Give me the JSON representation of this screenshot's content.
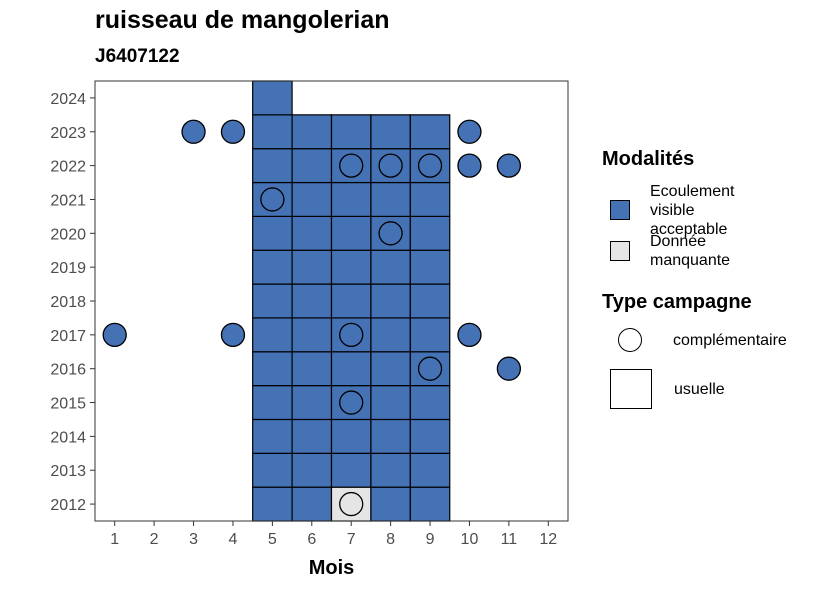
{
  "title": "ruisseau de mangolerian",
  "subtitle": "J6407122",
  "colors": {
    "ecoulement": "#4472B4",
    "manquante": "#E5E5E5"
  },
  "chart_data": {
    "type": "heatmap",
    "xlabel": "Mois",
    "ylabel": "",
    "x_ticks": [
      "1",
      "2",
      "3",
      "4",
      "5",
      "6",
      "7",
      "8",
      "9",
      "10",
      "11",
      "12"
    ],
    "y_ticks": [
      "2012",
      "2013",
      "2014",
      "2015",
      "2016",
      "2017",
      "2018",
      "2019",
      "2020",
      "2021",
      "2022",
      "2023",
      "2024"
    ],
    "xlim": [
      0.5,
      12.5
    ],
    "ylim": [
      2011.5,
      2024.5
    ],
    "grid": false,
    "legend_position": "right",
    "usuelle_tiles": [
      {
        "year": 2012,
        "months": [
          5,
          6,
          7,
          8,
          9
        ],
        "modalite": [
          "ecoulement",
          "ecoulement",
          "manquante",
          "ecoulement",
          "ecoulement"
        ]
      },
      {
        "year": 2013,
        "months": [
          5,
          6,
          7,
          8,
          9
        ],
        "modalite": [
          "ecoulement",
          "ecoulement",
          "ecoulement",
          "ecoulement",
          "ecoulement"
        ]
      },
      {
        "year": 2014,
        "months": [
          5,
          6,
          7,
          8,
          9
        ],
        "modalite": [
          "ecoulement",
          "ecoulement",
          "ecoulement",
          "ecoulement",
          "ecoulement"
        ]
      },
      {
        "year": 2015,
        "months": [
          5,
          6,
          7,
          8,
          9
        ],
        "modalite": [
          "ecoulement",
          "ecoulement",
          "ecoulement",
          "ecoulement",
          "ecoulement"
        ]
      },
      {
        "year": 2016,
        "months": [
          5,
          6,
          7,
          8,
          9
        ],
        "modalite": [
          "ecoulement",
          "ecoulement",
          "ecoulement",
          "ecoulement",
          "ecoulement"
        ]
      },
      {
        "year": 2017,
        "months": [
          5,
          6,
          7,
          8,
          9
        ],
        "modalite": [
          "ecoulement",
          "ecoulement",
          "ecoulement",
          "ecoulement",
          "ecoulement"
        ]
      },
      {
        "year": 2018,
        "months": [
          5,
          6,
          7,
          8,
          9
        ],
        "modalite": [
          "ecoulement",
          "ecoulement",
          "ecoulement",
          "ecoulement",
          "ecoulement"
        ]
      },
      {
        "year": 2019,
        "months": [
          5,
          6,
          7,
          8,
          9
        ],
        "modalite": [
          "ecoulement",
          "ecoulement",
          "ecoulement",
          "ecoulement",
          "ecoulement"
        ]
      },
      {
        "year": 2020,
        "months": [
          5,
          6,
          7,
          8,
          9
        ],
        "modalite": [
          "ecoulement",
          "ecoulement",
          "ecoulement",
          "ecoulement",
          "ecoulement"
        ]
      },
      {
        "year": 2021,
        "months": [
          5,
          6,
          7,
          8,
          9
        ],
        "modalite": [
          "ecoulement",
          "ecoulement",
          "ecoulement",
          "ecoulement",
          "ecoulement"
        ]
      },
      {
        "year": 2022,
        "months": [
          5,
          6,
          7,
          8,
          9
        ],
        "modalite": [
          "ecoulement",
          "ecoulement",
          "ecoulement",
          "ecoulement",
          "ecoulement"
        ]
      },
      {
        "year": 2023,
        "months": [
          5,
          6,
          7,
          8,
          9
        ],
        "modalite": [
          "ecoulement",
          "ecoulement",
          "ecoulement",
          "ecoulement",
          "ecoulement"
        ]
      },
      {
        "year": 2024,
        "months": [
          5
        ],
        "modalite": [
          "ecoulement"
        ]
      }
    ],
    "complementaire_points": [
      {
        "year": 2012,
        "month": 7,
        "modalite": "manquante"
      },
      {
        "year": 2015,
        "month": 7,
        "modalite": "ecoulement"
      },
      {
        "year": 2016,
        "month": 9,
        "modalite": "ecoulement"
      },
      {
        "year": 2016,
        "month": 11,
        "modalite": "ecoulement"
      },
      {
        "year": 2017,
        "month": 1,
        "modalite": "ecoulement"
      },
      {
        "year": 2017,
        "month": 4,
        "modalite": "ecoulement"
      },
      {
        "year": 2017,
        "month": 7,
        "modalite": "ecoulement"
      },
      {
        "year": 2017,
        "month": 10,
        "modalite": "ecoulement"
      },
      {
        "year": 2020,
        "month": 8,
        "modalite": "ecoulement"
      },
      {
        "year": 2021,
        "month": 5,
        "modalite": "ecoulement"
      },
      {
        "year": 2022,
        "month": 7,
        "modalite": "ecoulement"
      },
      {
        "year": 2022,
        "month": 8,
        "modalite": "ecoulement"
      },
      {
        "year": 2022,
        "month": 9,
        "modalite": "ecoulement"
      },
      {
        "year": 2022,
        "month": 10,
        "modalite": "ecoulement"
      },
      {
        "year": 2022,
        "month": 11,
        "modalite": "ecoulement"
      },
      {
        "year": 2023,
        "month": 3,
        "modalite": "ecoulement"
      },
      {
        "year": 2023,
        "month": 4,
        "modalite": "ecoulement"
      },
      {
        "year": 2023,
        "month": 10,
        "modalite": "ecoulement"
      }
    ]
  },
  "legend": {
    "modalites_title": "Modalités",
    "modalites": [
      {
        "label_lines": [
          "Ecoulement",
          "visible",
          "acceptable"
        ],
        "color": "#4472B4"
      },
      {
        "label_lines": [
          "Donnée",
          "manquante"
        ],
        "color": "#E5E5E5"
      }
    ],
    "type_title": "Type campagne",
    "types": [
      {
        "label": "complémentaire",
        "shape": "circle"
      },
      {
        "label": "usuelle",
        "shape": "square"
      }
    ]
  }
}
